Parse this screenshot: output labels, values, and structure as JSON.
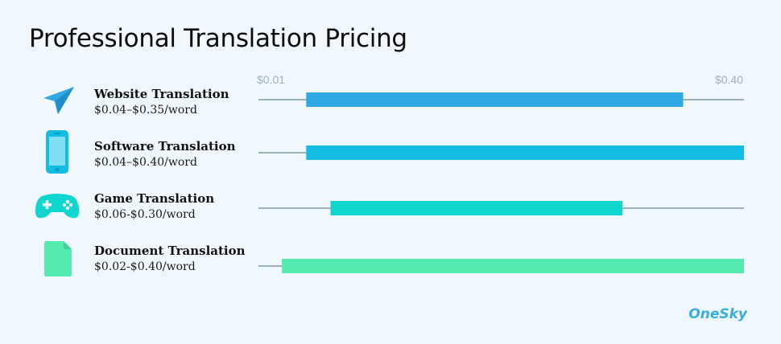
{
  "title": "Professional Translation Pricing",
  "logo": "OneSky",
  "chart_data": {
    "type": "bar",
    "orientation": "horizontal-range",
    "title": "Professional Translation Pricing",
    "xlim": [
      0.01,
      0.4
    ],
    "axis_labels": [
      "$0.01",
      "$0.40"
    ],
    "grid": false,
    "categories": [
      {
        "name": "Website Translation",
        "range_text": "$0.04–$0.35/word",
        "min": 0.04,
        "max": 0.35,
        "color": "#2fa9e3",
        "icon": "paper-plane-icon"
      },
      {
        "name": "Software Translation",
        "range_text": "$0.04–$0.40/word",
        "min": 0.04,
        "max": 0.4,
        "color": "#13bce3",
        "icon": "smartphone-icon"
      },
      {
        "name": "Game Translation",
        "range_text": "$0.06-$0.30/word",
        "min": 0.06,
        "max": 0.3,
        "color": "#0fd6ce",
        "icon": "gamepad-icon"
      },
      {
        "name": "Document Translation",
        "range_text": "$0.02-$0.40/word",
        "min": 0.02,
        "max": 0.4,
        "color": "#55ebb0",
        "icon": "document-icon"
      }
    ]
  }
}
